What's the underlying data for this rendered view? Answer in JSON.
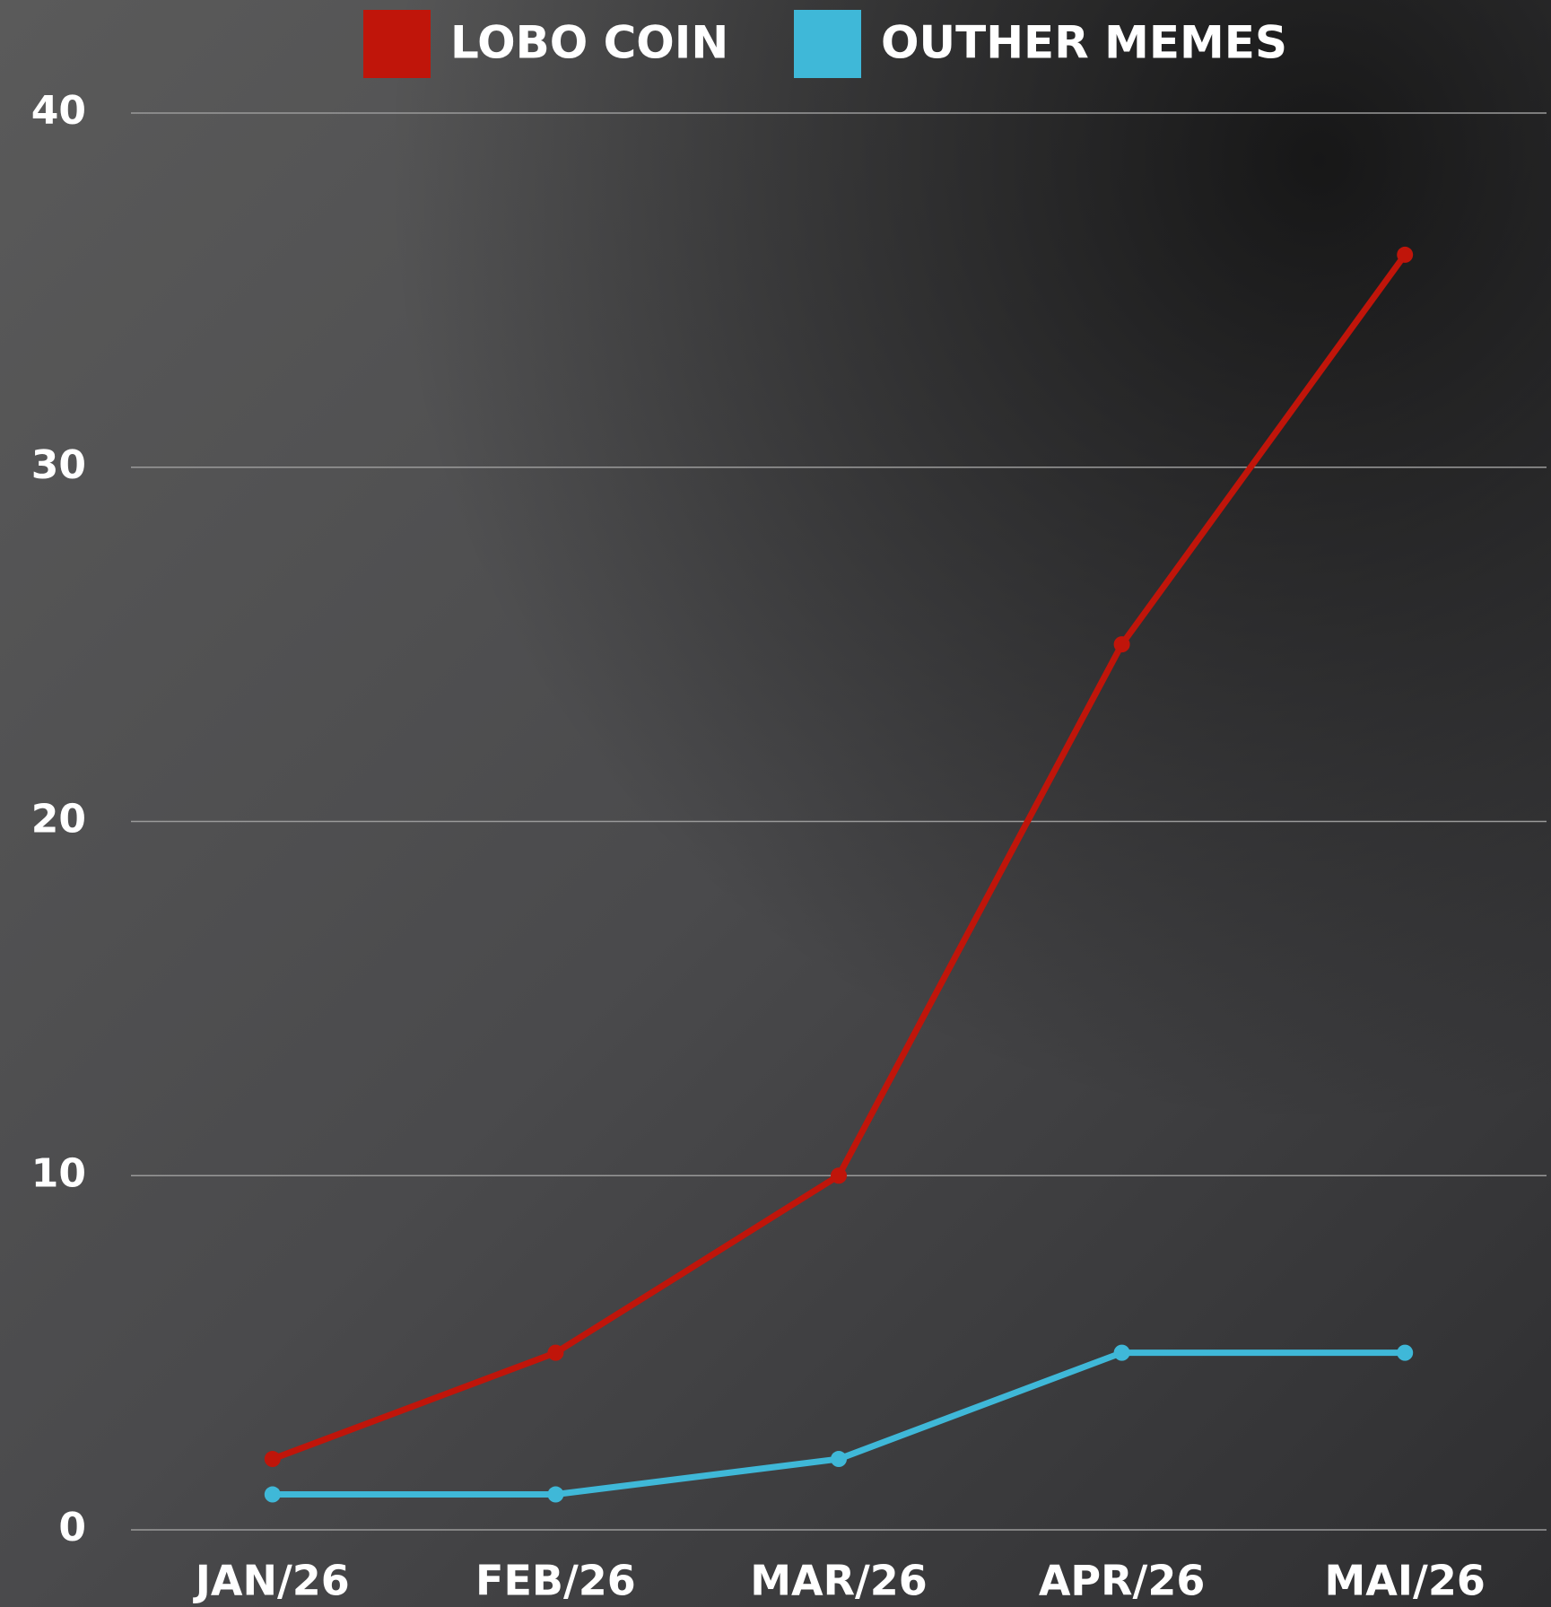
{
  "chart_data": {
    "type": "line",
    "categories": [
      "JAN/26",
      "FEB/26",
      "MAR/26",
      "APR/26",
      "MAI/26"
    ],
    "series": [
      {
        "name": "LOBO COIN",
        "color": "#c0150a",
        "values": [
          2,
          5,
          10,
          25,
          36
        ]
      },
      {
        "name": "OUTHER MEMES",
        "color": "#3fb8d8",
        "values": [
          1,
          1,
          2,
          5,
          5
        ]
      }
    ],
    "ylim": [
      0,
      40
    ],
    "yticks": [
      0,
      10,
      20,
      30,
      40
    ],
    "grid": true
  }
}
